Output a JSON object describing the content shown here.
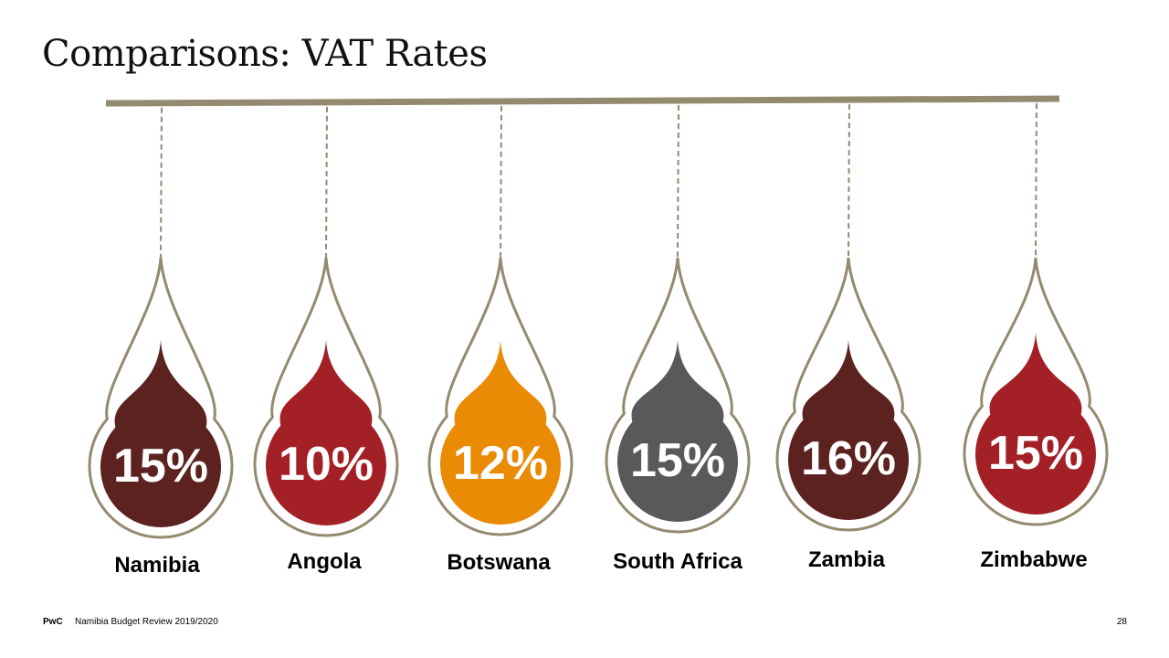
{
  "title": "Comparisons: VAT Rates",
  "footer": {
    "brand": "PwC",
    "text": "Namibia Budget Review 2019/2020",
    "page": "28"
  },
  "colors": {
    "bar": "#948a6f",
    "outline": "#948a6f",
    "label_text": "#000000",
    "value_text": "#ffffff"
  },
  "chart_data": {
    "type": "bar",
    "title": "Comparisons: VAT Rates",
    "categories": [
      "Namibia",
      "Angola",
      "Botswana",
      "South Africa",
      "Zambia",
      "Zimbabwe"
    ],
    "series": [
      {
        "values": [
          15,
          10,
          12,
          15,
          16,
          15
        ],
        "labels": [
          "15%",
          "10%",
          "12%",
          "15%",
          "16%",
          "15%"
        ]
      }
    ],
    "unit": "%",
    "drop_colors": [
      "#5c2220",
      "#a32126",
      "#e98b05",
      "#595959",
      "#5c2220",
      "#a32126"
    ]
  }
}
